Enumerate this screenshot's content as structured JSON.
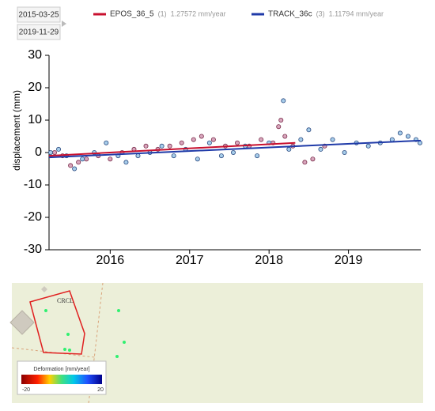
{
  "date_range": {
    "start": "2015-03-25",
    "end": "2019-11-29"
  },
  "chart_data": {
    "type": "scatter",
    "y_label": "displacement (mm)",
    "xlim": [
      2015.23,
      2019.91
    ],
    "xticks": [
      2016,
      2017,
      2018,
      2019
    ],
    "ylim": [
      -30,
      30
    ],
    "yticks": [
      -30,
      -20,
      -10,
      0,
      10,
      20,
      30
    ],
    "series": [
      {
        "name": "EPOS_36_5",
        "index_label": "(1)",
        "rate_label": "1.27572 mm/year",
        "color": "#c8102e",
        "point_fill": "#d8a6bd",
        "point_stroke": "#7a2c4a",
        "x": [
          2015.3,
          2015.4,
          2015.5,
          2015.6,
          2015.7,
          2015.85,
          2016.0,
          2016.15,
          2016.3,
          2016.45,
          2016.6,
          2016.75,
          2016.9,
          2017.05,
          2017.15,
          2017.3,
          2017.45,
          2017.6,
          2017.75,
          2017.9,
          2018.05,
          2018.12,
          2018.15,
          2018.2,
          2018.3,
          2018.45,
          2018.55,
          2018.7
        ],
        "values": [
          0,
          -1,
          -4,
          -3,
          -2,
          -1,
          -2,
          0,
          1,
          2,
          1,
          2,
          3,
          4,
          5,
          4,
          2,
          3,
          2,
          4,
          3,
          8,
          10,
          5,
          2,
          -3,
          -2,
          2
        ],
        "trend": {
          "x": [
            2015.23,
            2018.33
          ],
          "values": [
            -1,
            3
          ]
        }
      },
      {
        "name": "TRACK_36c",
        "index_label": "(3)",
        "rate_label": "1.11794 mm/year",
        "color": "#1f3aa8",
        "point_fill": "#a7cdea",
        "point_stroke": "#2b4a80",
        "x": [
          2015.25,
          2015.35,
          2015.45,
          2015.55,
          2015.65,
          2015.8,
          2015.95,
          2016.1,
          2016.2,
          2016.35,
          2016.5,
          2016.65,
          2016.8,
          2016.95,
          2017.1,
          2017.25,
          2017.4,
          2017.55,
          2017.7,
          2017.85,
          2018.0,
          2018.18,
          2018.25,
          2018.4,
          2018.5,
          2018.65,
          2018.8,
          2018.95,
          2019.1,
          2019.25,
          2019.4,
          2019.55,
          2019.65,
          2019.75,
          2019.85,
          2019.9
        ],
        "values": [
          0,
          1,
          -1,
          -5,
          -2,
          0,
          3,
          -1,
          -3,
          -1,
          0,
          2,
          -1,
          1,
          -2,
          3,
          -1,
          0,
          2,
          -1,
          3,
          16,
          1,
          4,
          7,
          1,
          4,
          0,
          3,
          2,
          3,
          4,
          6,
          5,
          4,
          3
        ],
        "trend": {
          "x": [
            2015.23,
            2019.91
          ],
          "values": [
            -1.5,
            3.7
          ]
        }
      }
    ]
  },
  "map": {
    "site_label": "CRCL",
    "legend": {
      "title": "Deformation [mm/year]",
      "min": -20,
      "max": 20
    }
  }
}
